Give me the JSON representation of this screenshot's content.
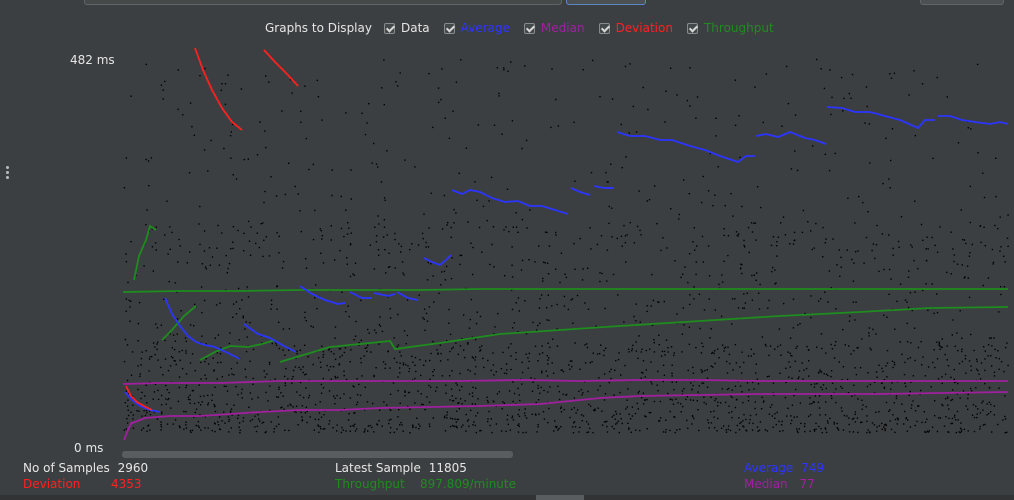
{
  "header": {
    "combo_text": "",
    "graphs_label": "Graphs to Display",
    "checkboxes": [
      {
        "label": "Data",
        "color": "#e6e6e6",
        "checked": true
      },
      {
        "label": "Average",
        "color": "#2b35ff",
        "checked": true
      },
      {
        "label": "Median",
        "color": "#a020a0",
        "checked": true
      },
      {
        "label": "Deviation",
        "color": "#ff2020",
        "checked": true
      },
      {
        "label": "Throughput",
        "color": "#1e8c1e",
        "checked": true
      }
    ]
  },
  "axis": {
    "max_label": "482  ms",
    "min_label": "0  ms"
  },
  "stats": {
    "samples_label": "No of Samples",
    "samples_value": "2960",
    "latest_label": "Latest Sample",
    "latest_value": "11805",
    "average_label": "Average",
    "average_value": "749",
    "deviation_label": "Deviation",
    "deviation_value": "4353",
    "throughput_label": "Throughput",
    "throughput_value": "897.809/minute",
    "median_label": "Median",
    "median_value": "77"
  },
  "colors": {
    "background": "#3c3f41",
    "data": "#000000",
    "average": "#2b35ff",
    "median": "#a020a0",
    "deviation": "#ff2020",
    "throughput": "#1e8c1e"
  }
}
